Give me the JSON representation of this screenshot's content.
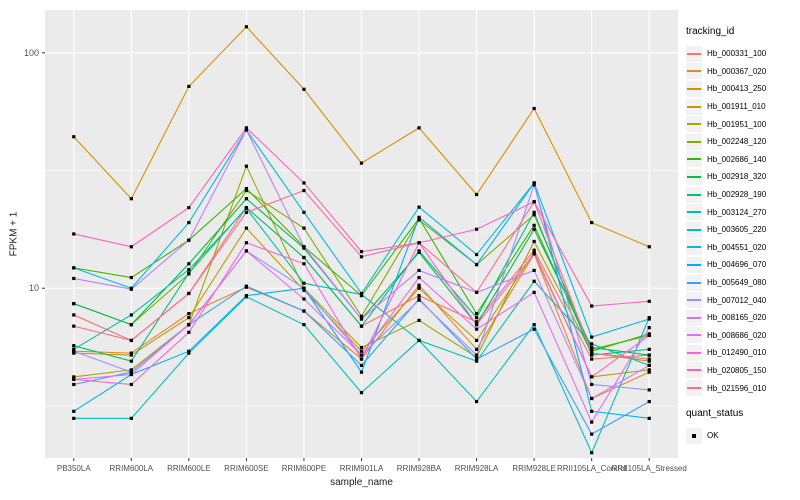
{
  "theme": {
    "panel_bg": "#EBEBEB",
    "grid_color": "#FFFFFF",
    "tick_text_color": "#4D4D4D",
    "tick_mark_color": "#333333",
    "legend_key_bg": "#F2F2F2"
  },
  "legend": {
    "title": "tracking_id"
  },
  "legend2": {
    "title": "quant_status",
    "items": [
      {
        "label": "OK"
      }
    ]
  },
  "chart_data": {
    "type": "line",
    "title": "",
    "xlabel": "sample_name",
    "ylabel": "FPKM + 1",
    "y_scale": "log10",
    "ylim": [
      1.9,
      152
    ],
    "y_major_ticks": [
      100,
      10
    ],
    "y_minor_ticks": [
      31.62,
      3.162
    ],
    "grid": "on",
    "legend_position": "right",
    "marker": {
      "shape": "square",
      "color": "#000000",
      "status_label": "OK"
    },
    "x_categories": [
      "PB350LA",
      "RRIM600LA",
      "RRIM600LE",
      "RRIM600SE",
      "RRIM600PE",
      "RRIM901LA",
      "RRIM928BA",
      "RRIM928LA",
      "RRIM928LE",
      "RRII105LA_Control",
      "RRII105LA_Stressed"
    ],
    "series": [
      {
        "name": "Hb_000331_100",
        "color": "#F8766D",
        "values": [
          7.7,
          6.0,
          9.5,
          22,
          13.5,
          6.9,
          9.3,
          7.2,
          14.5,
          5.0,
          5.2
        ]
      },
      {
        "name": "Hb_000367_020",
        "color": "#EA8331",
        "values": [
          5.4,
          5.3,
          7.8,
          10.1,
          8.0,
          5.0,
          10.3,
          5.5,
          14.0,
          3.4,
          4.4
        ]
      },
      {
        "name": "Hb_000413_250",
        "color": "#D89000",
        "values": [
          44,
          24,
          72,
          129,
          70,
          34,
          48,
          25,
          58,
          19,
          15
        ]
      },
      {
        "name": "Hb_001911_010",
        "color": "#C09B00",
        "values": [
          5.3,
          5.2,
          7.5,
          18,
          9.8,
          5.4,
          10.0,
          6.0,
          14.2,
          4.2,
          4.5
        ]
      },
      {
        "name": "Hb_001951_100",
        "color": "#A3A500",
        "values": [
          4.2,
          4.5,
          7.0,
          33,
          10.0,
          5.6,
          7.3,
          5.1,
          15.8,
          5.3,
          4.9
        ]
      },
      {
        "name": "Hb_002248_120",
        "color": "#7CAE00",
        "values": [
          8.6,
          7.0,
          11.5,
          26,
          18,
          7.6,
          19.5,
          12.6,
          20.5,
          5.5,
          6.3
        ]
      },
      {
        "name": "Hb_002686_140",
        "color": "#39B600",
        "values": [
          12.2,
          11.1,
          16,
          26.5,
          15,
          9.3,
          19.8,
          7.8,
          18.5,
          5.4,
          6.4
        ]
      },
      {
        "name": "Hb_002918_320",
        "color": "#00BB4E",
        "values": [
          8.6,
          7.0,
          12.7,
          24,
          14.8,
          7.4,
          14.2,
          7.0,
          17.8,
          5.6,
          5.2
        ]
      },
      {
        "name": "Hb_002928_190",
        "color": "#00BF7D",
        "values": [
          5.7,
          4.9,
          11.6,
          22,
          13.5,
          6.9,
          14.4,
          7.5,
          21,
          5.2,
          5.5
        ]
      },
      {
        "name": "Hb_003124_270",
        "color": "#00C1A3",
        "values": [
          5.5,
          7.7,
          12.0,
          21.8,
          10.5,
          9.4,
          6.0,
          4.9,
          10.7,
          5.8,
          4.7
        ]
      },
      {
        "name": "Hb_003605_220",
        "color": "#00BFC4",
        "values": [
          2.8,
          2.8,
          5.3,
          9.2,
          7.0,
          3.6,
          6.0,
          3.3,
          7.0,
          2.0,
          7.5
        ]
      },
      {
        "name": "Hb_004551_020",
        "color": "#00BAE0",
        "values": [
          12.2,
          10.0,
          19,
          47,
          21,
          9.5,
          22.1,
          13.9,
          28,
          6.2,
          7.4
        ]
      },
      {
        "name": "Hb_004696_070",
        "color": "#00B0F6",
        "values": [
          3.0,
          4.3,
          5.4,
          9.3,
          10.0,
          4.4,
          20,
          12.6,
          28,
          3.0,
          2.8
        ]
      },
      {
        "name": "Hb_005649_080",
        "color": "#35A2FF",
        "values": [
          3.9,
          4.4,
          7.0,
          10.2,
          8.0,
          4.7,
          9.0,
          5.0,
          6.7,
          2.4,
          3.3
        ]
      },
      {
        "name": "Hb_007012_040",
        "color": "#9590FF",
        "values": [
          5.4,
          4.4,
          7.0,
          14.4,
          10.0,
          5.2,
          8.9,
          5.2,
          27.5,
          3.9,
          3.7
        ]
      },
      {
        "name": "Hb_008165_020",
        "color": "#C77CFF",
        "values": [
          11.0,
          9.9,
          16,
          47,
          15,
          7.4,
          11.9,
          9.6,
          11.9,
          3.4,
          4.7
        ]
      },
      {
        "name": "Hb_008686_020",
        "color": "#E76BF3",
        "values": [
          4.1,
          4.3,
          7.0,
          14.4,
          9.0,
          5.2,
          11.1,
          6.7,
          9.6,
          2.7,
          6.8
        ]
      },
      {
        "name": "Hb_012490_010",
        "color": "#FA62DB",
        "values": [
          4.1,
          3.9,
          6.5,
          15.6,
          12.7,
          5.0,
          15.6,
          7.0,
          14.0,
          4.2,
          6.3
        ]
      },
      {
        "name": "Hb_020805_150",
        "color": "#FF62BC",
        "values": [
          17,
          15,
          22,
          48,
          28,
          14.3,
          15.6,
          17.8,
          23.3,
          8.4,
          8.8
        ]
      },
      {
        "name": "Hb_021596_010",
        "color": "#FF6A98",
        "values": [
          6.9,
          6.0,
          9.5,
          21,
          26,
          13.6,
          15.6,
          9.6,
          23.3,
          5.3,
          5.0
        ]
      }
    ]
  }
}
